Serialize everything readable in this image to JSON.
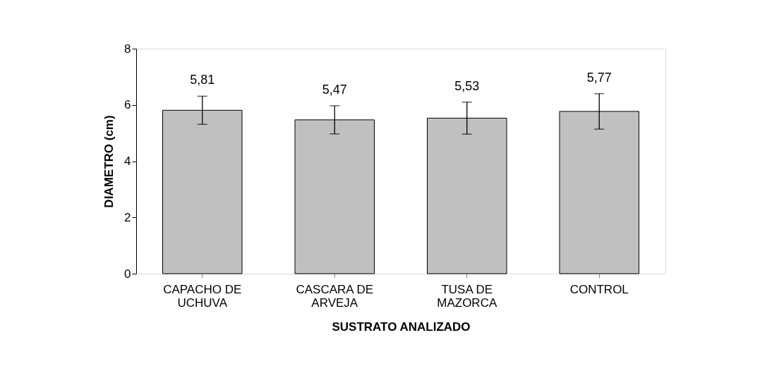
{
  "chart_data": {
    "type": "bar",
    "xlabel": "SUSTRATO ANALIZADO",
    "ylabel": "DIAMETRO (cm)",
    "categories": [
      "CAPACHO DE UCHUVA",
      "CASCARA DE ARVEJA",
      "TUSA DE MAZORCA",
      "CONTROL"
    ],
    "values": [
      5.81,
      5.47,
      5.53,
      5.77
    ],
    "color": "#c0c0c0",
    "errors": [
      0.5,
      0.5,
      0.57,
      0.63
    ],
    "value_labels": [
      "5,81",
      "5,47",
      "5,53",
      "5,77"
    ],
    "ylim": [
      0,
      8
    ],
    "yticks": [
      0,
      2,
      4,
      6,
      8
    ],
    "grid": false
  }
}
